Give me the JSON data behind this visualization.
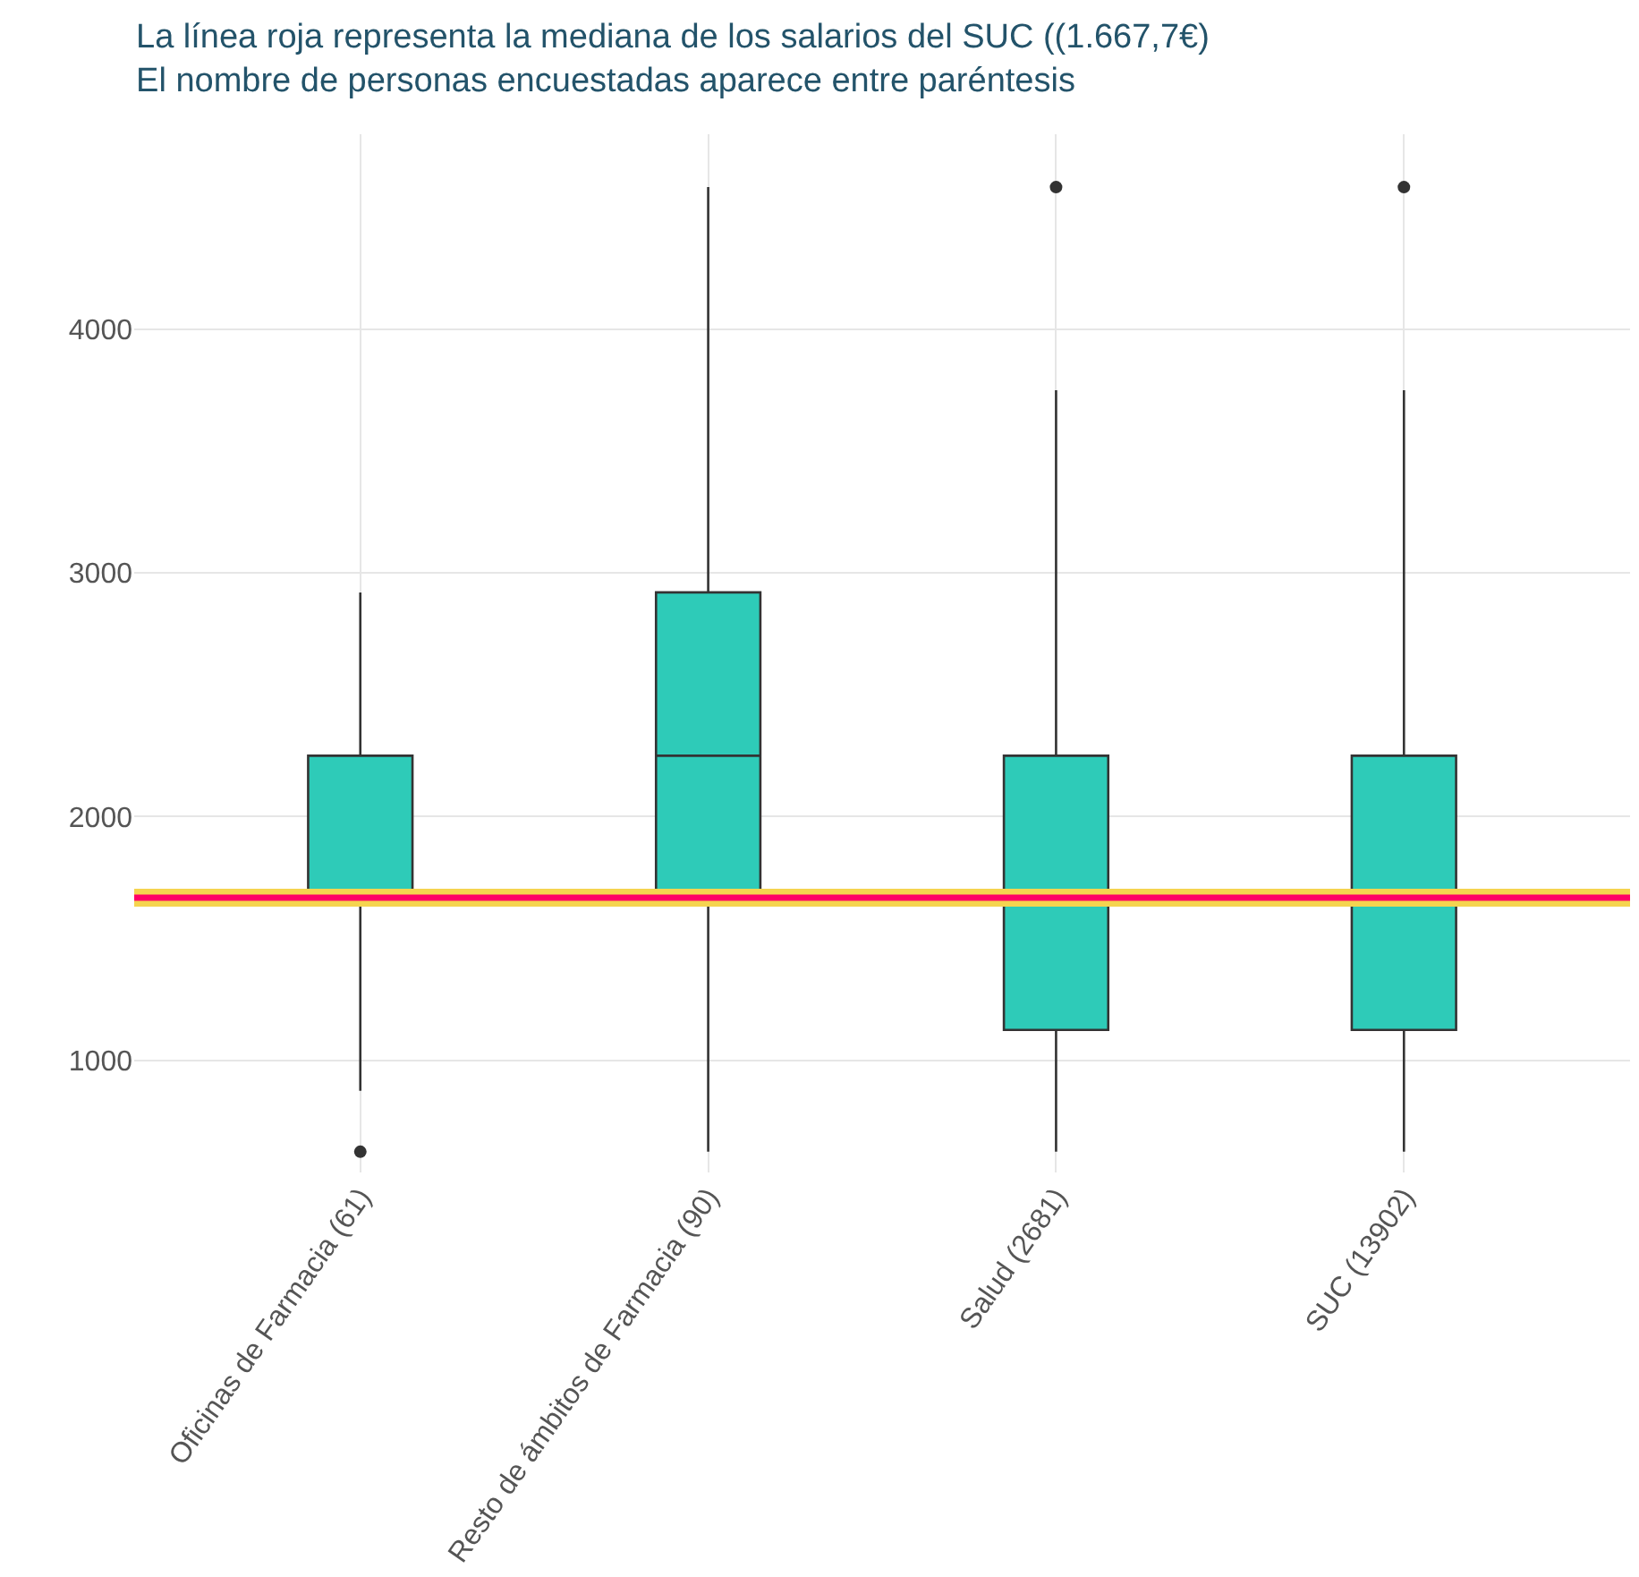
{
  "chart_data": {
    "type": "box",
    "title": "La línea roja representa la mediana de los salarios del SUC ((1.667,7€)",
    "subtitle": "El nombre de personas encuestadas aparece entre paréntesis",
    "categories": [
      "Oficinas de Farmacia (61)",
      "Resto de ámbitos de Farmacia (90)",
      "Salud (2681)",
      "SUC (13902)"
    ],
    "boxes": [
      {
        "low": 875,
        "q1": 1667.7,
        "median": 1667.7,
        "q3": 2250,
        "high": 2920,
        "outliers": [
          625
        ]
      },
      {
        "low": 625,
        "q1": 1667.7,
        "median": 2250,
        "q3": 2920,
        "high": 4583
      },
      {
        "low": 625,
        "q1": 1125,
        "median": 1667.7,
        "q3": 2250,
        "high": 3750,
        "outliers": [
          4583
        ]
      },
      {
        "low": 625,
        "q1": 1125,
        "median": 1667.7,
        "q3": 2250,
        "high": 3750,
        "outliers": [
          4583
        ]
      }
    ],
    "color": "#2ecbb8",
    "ylim": [
      540,
      4800
    ],
    "yticks": [
      1000,
      2000,
      3000,
      4000
    ],
    "ref_lines": [
      {
        "axis": "y",
        "value": 1667.7,
        "color": "#f5d44f"
      },
      {
        "axis": "y",
        "value": 1667.7,
        "color": "#ff0066"
      }
    ],
    "grid": true
  }
}
